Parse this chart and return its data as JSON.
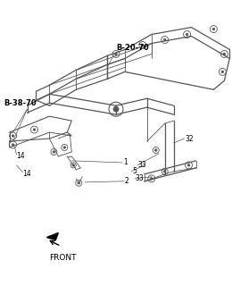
{
  "bg_color": "#ffffff",
  "line_color": "#555555",
  "label_color": "#000000",
  "fig_width": 2.6,
  "fig_height": 3.2,
  "dpi": 100,
  "front_text": "FRONT",
  "lw_frame": 0.9,
  "lw_detail": 0.6,
  "lw_leader": 0.5
}
